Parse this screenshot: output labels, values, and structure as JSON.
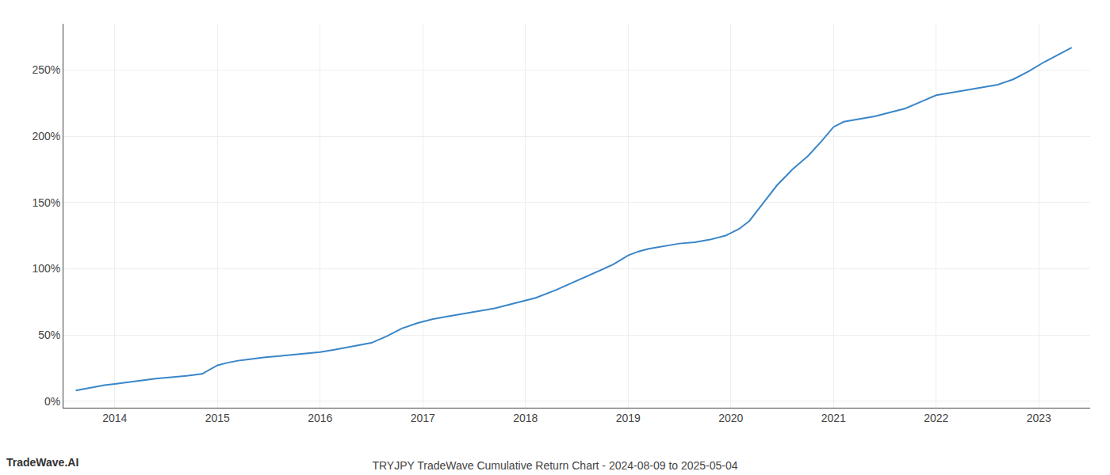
{
  "chart_data": {
    "type": "line",
    "title": "TRYJPY TradeWave Cumulative Return Chart - 2024-08-09 to 2025-05-04",
    "annotations": [
      "TradeWave.AI"
    ],
    "color": "#3a86c8",
    "grid": true,
    "x": [
      2013.62,
      2013.75,
      2013.9,
      2014.0,
      2014.1,
      2014.25,
      2014.4,
      2014.55,
      2014.7,
      2014.85,
      2015.0,
      2015.1,
      2015.2,
      2015.3,
      2015.45,
      2015.6,
      2015.75,
      2015.9,
      2016.0,
      2016.15,
      2016.3,
      2016.5,
      2016.65,
      2016.8,
      2016.95,
      2017.0,
      2017.1,
      2017.25,
      2017.4,
      2017.55,
      2017.7,
      2017.85,
      2018.0,
      2018.1,
      2018.3,
      2018.5,
      2018.7,
      2018.85,
      2019.0,
      2019.1,
      2019.2,
      2019.35,
      2019.5,
      2019.65,
      2019.8,
      2019.95,
      2020.0,
      2020.08,
      2020.13,
      2020.18,
      2020.3,
      2020.45,
      2020.6,
      2020.75,
      2020.88,
      2021.0,
      2021.1,
      2021.25,
      2021.4,
      2021.55,
      2021.7,
      2021.85,
      2022.0,
      2022.15,
      2022.3,
      2022.45,
      2022.6,
      2022.75,
      2022.9,
      2023.05,
      2023.2,
      2023.32
    ],
    "values": [
      8,
      10,
      12,
      13,
      14,
      15.5,
      17,
      18,
      19,
      20.5,
      27,
      29,
      30.5,
      31.5,
      33,
      34,
      35,
      36,
      37,
      39,
      41,
      44,
      49,
      55,
      59,
      60,
      62,
      64,
      66,
      68,
      70,
      73,
      76,
      78,
      84,
      91,
      98,
      103,
      110,
      113,
      115,
      117,
      119,
      120,
      122,
      125,
      127,
      130,
      133,
      136,
      148,
      163,
      175,
      185,
      196,
      207,
      211,
      213,
      215,
      218,
      221,
      226,
      231,
      233,
      235,
      237,
      239,
      243,
      249,
      256,
      262,
      267
    ],
    "xlim": [
      2013.5,
      2023.5
    ],
    "xticks": [
      2014,
      2015,
      2016,
      2017,
      2018,
      2019,
      2020,
      2021,
      2022,
      2023
    ],
    "ylim": [
      -5,
      285
    ],
    "yticks": [
      {
        "value": 0,
        "label": "0%"
      },
      {
        "value": 50,
        "label": "50%"
      },
      {
        "value": 100,
        "label": "100%"
      },
      {
        "value": 150,
        "label": "150%"
      },
      {
        "value": 200,
        "label": "200%"
      },
      {
        "value": 250,
        "label": "250%"
      }
    ]
  }
}
